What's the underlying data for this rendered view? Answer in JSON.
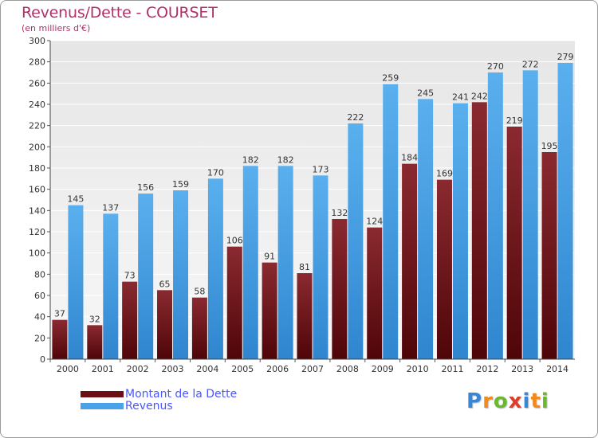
{
  "chart_data": {
    "type": "bar",
    "title": "Revenus/Dette - COURSET",
    "subtitle": "(en milliers d'€)",
    "categories": [
      "2000",
      "2001",
      "2002",
      "2003",
      "2004",
      "2005",
      "2006",
      "2007",
      "2008",
      "2009",
      "2010",
      "2011",
      "2012",
      "2013",
      "2014"
    ],
    "series": [
      {
        "name": "Montant de la Dette",
        "color": "#6b0f14",
        "values": [
          37,
          32,
          73,
          65,
          58,
          106,
          91,
          81,
          132,
          124,
          184,
          169,
          242,
          219,
          195
        ]
      },
      {
        "name": "Revenus",
        "color": "#4aa3e8",
        "values": [
          145,
          137,
          156,
          159,
          170,
          182,
          182,
          173,
          222,
          259,
          245,
          241,
          270,
          272,
          279
        ]
      }
    ],
    "ylim": [
      0,
      300
    ],
    "yticks": [
      0,
      20,
      40,
      60,
      80,
      100,
      120,
      140,
      160,
      180,
      200,
      220,
      240,
      260,
      280,
      300
    ],
    "grid": true,
    "legend_position": "bottom-left"
  },
  "legend": {
    "dette_label": "Montant de la Dette",
    "revenus_label": "Revenus"
  },
  "logo": {
    "text": "Proxiti",
    "letter_colors": [
      "#3a86d6",
      "#f08a1c",
      "#6ab82e",
      "#e03a2a",
      "#3a86d6",
      "#f08a1c",
      "#6ab82e"
    ]
  }
}
